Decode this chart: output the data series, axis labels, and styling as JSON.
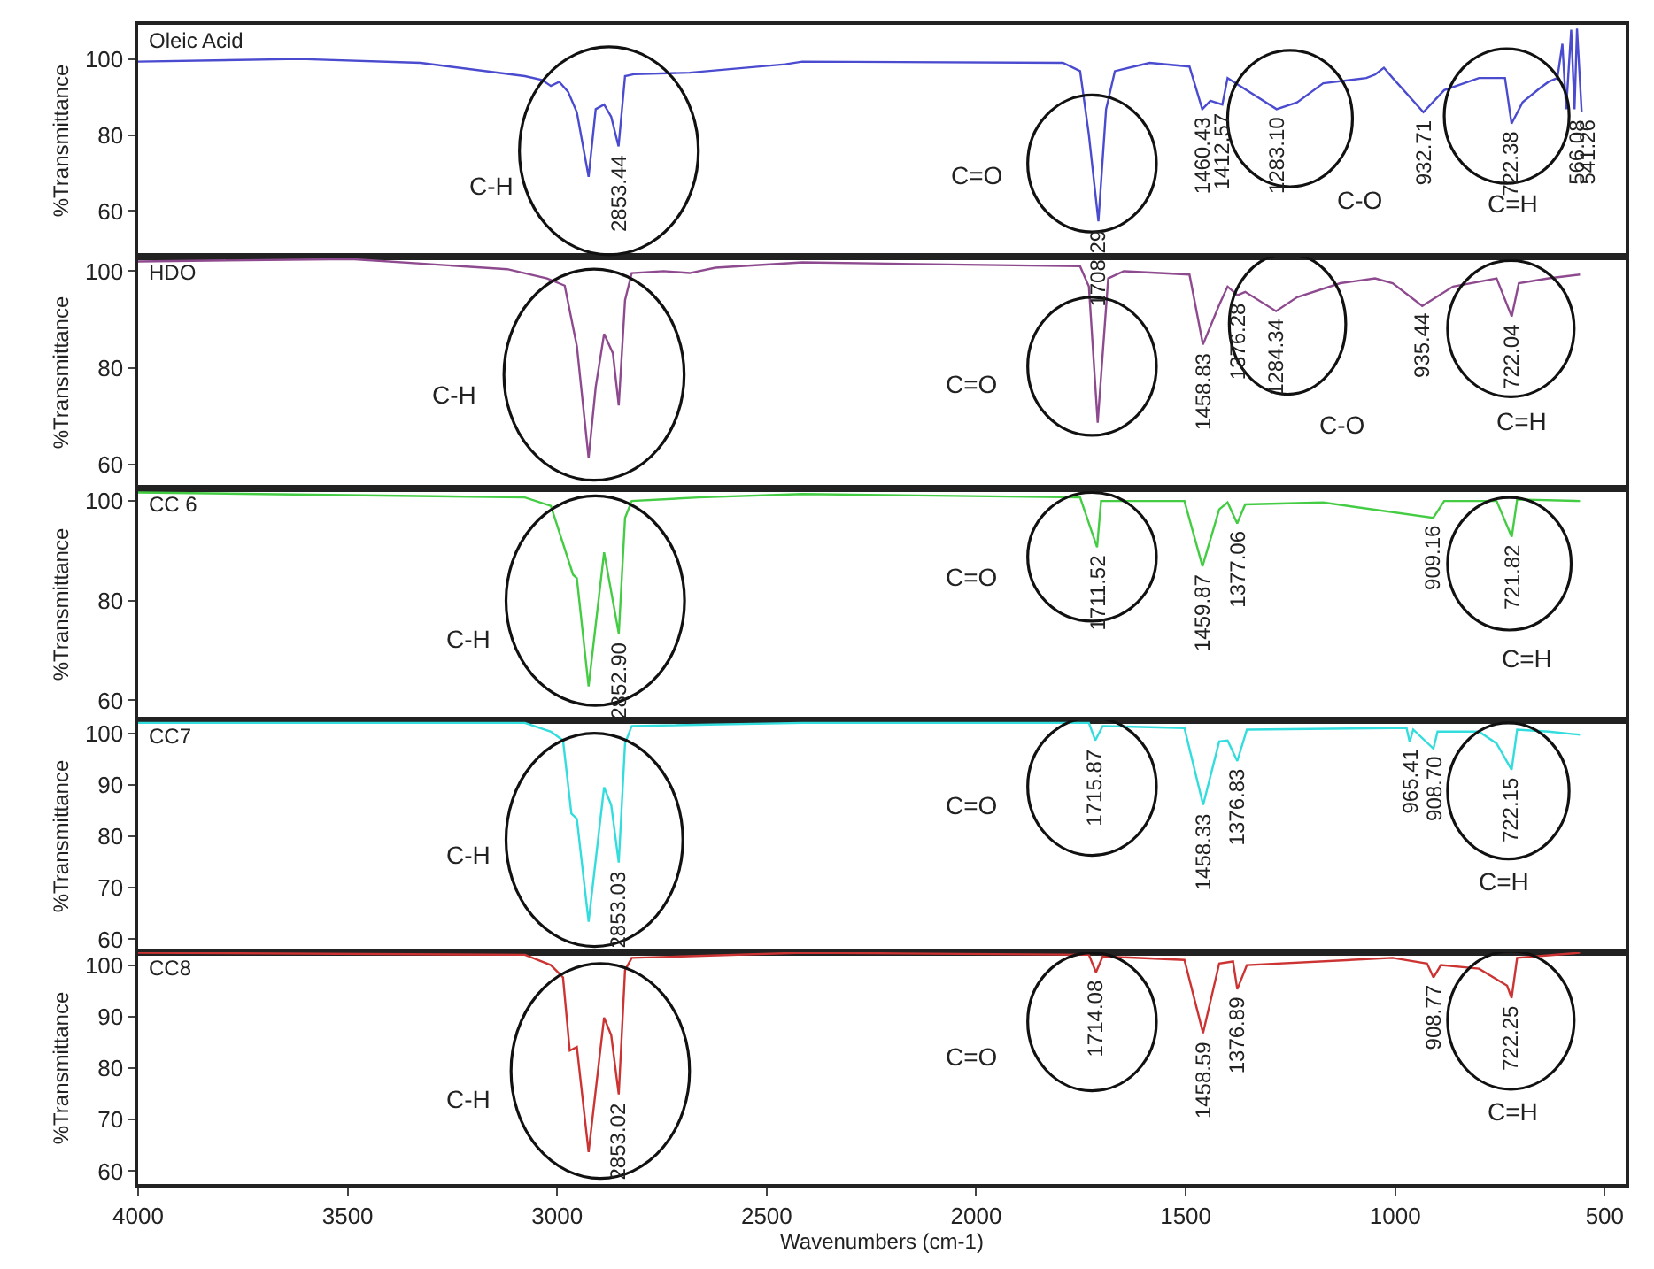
{
  "chart_data": [
    {
      "type": "line",
      "ylabel": "%Transmittance",
      "xlim": [
        4000,
        450
      ],
      "ylim": [
        48,
        109
      ],
      "yticks": [
        60,
        80,
        100
      ],
      "tick_labels": "y",
      "line_style": "solid",
      "series": [
        {
          "name": "Oleic Acid",
          "color": "#4b4bd0",
          "x": [
            4000,
            3615,
            3326,
            3077,
            3036,
            3015,
            2995,
            2974,
            2953,
            2925,
            2908,
            2888,
            2871,
            2853.44,
            2838,
            2817,
            2684,
            2456,
            2415,
            1793,
            1752,
            1731,
            1708.29,
            1690,
            1669,
            1586,
            1491,
            1460.43,
            1441,
            1412.57,
            1400,
            1380,
            1283.1,
            1234,
            1172,
            1069,
            1048,
            1027,
            1006,
            932.71,
            883,
            800,
            738,
            722.38,
            696,
            655,
            634,
            613,
            601,
            592,
            580,
            572,
            566.08,
            555
          ],
          "values": [
            99.3,
            100,
            99,
            95.5,
            94.5,
            92.9,
            94,
            91.4,
            86,
            69,
            86.8,
            88,
            84.8,
            77,
            95.5,
            96,
            96.4,
            98.6,
            99.3,
            99,
            96.8,
            80,
            57.3,
            86.8,
            96.8,
            99,
            98,
            86.8,
            89,
            88,
            95,
            93.6,
            86.8,
            88.6,
            93.6,
            95,
            95.9,
            97.7,
            95,
            86,
            91.8,
            95,
            95,
            83,
            88.6,
            92.3,
            94,
            95,
            104,
            86.8,
            107.7,
            86.8,
            108,
            86
          ]
        }
      ],
      "annotations": [
        {
          "text": "2853.44",
          "x": 2853.44,
          "y": 77
        },
        {
          "text": "1708.29",
          "x": 1708.29,
          "y": 57.3
        },
        {
          "text": "1460.43",
          "x": 1460.43,
          "y": 86.8
        },
        {
          "text": "1412.57",
          "x": 1412.57,
          "y": 88
        },
        {
          "text": "1283.10",
          "x": 1283.1,
          "y": 86.8
        },
        {
          "text": "932.71",
          "x": 932.71,
          "y": 86
        },
        {
          "text": "722.38",
          "x": 722.38,
          "y": 83
        },
        {
          "text": "566.08",
          "x": 566.08,
          "y": 86
        },
        {
          "text": "541.26",
          "x": 541.26,
          "y": 86
        },
        "C-H",
        "C=O",
        "C-O",
        "C=H"
      ]
    },
    {
      "type": "line",
      "ylabel": "%Transmittance",
      "xlim": [
        4000,
        450
      ],
      "ylim": [
        55,
        103
      ],
      "yticks": [
        60,
        80,
        100
      ],
      "tick_labels": "y",
      "line_style": "solid",
      "series": [
        {
          "name": "HDO",
          "color": "#8e4a8e",
          "x": [
            4000,
            3492,
            3119,
            3024,
            2982,
            2953,
            2925,
            2908,
            2888,
            2867,
            2853,
            2838,
            2822,
            2746,
            2684,
            2622,
            2415,
            1752,
            1731,
            1710,
            1685,
            1648,
            1491,
            1458.83,
            1420,
            1400,
            1376.28,
            1358,
            1284.34,
            1234,
            1131,
            1048,
            1006,
            935.44,
            862,
            758,
            722.04,
            705,
            634,
            559
          ],
          "values": [
            102,
            102.5,
            100.4,
            98.5,
            97,
            84.5,
            61.3,
            76,
            87,
            83,
            72.2,
            94,
            99.6,
            100,
            99.6,
            100.7,
            101.8,
            101,
            96.8,
            68.6,
            98.5,
            100,
            99.3,
            84.8,
            93,
            96.8,
            95,
            95.7,
            91.7,
            94.6,
            97.5,
            98.5,
            97.5,
            92.8,
            96.8,
            98.5,
            90.6,
            97.5,
            98.5,
            99.3
          ]
        }
      ],
      "annotations": [
        {
          "text": "1458.83",
          "x": 1458.83,
          "y": 84.8
        },
        {
          "text": "1376.28",
          "x": 1376.28,
          "y": 95
        },
        {
          "text": "1284.34",
          "x": 1284.34,
          "y": 91.7
        },
        {
          "text": "935.44",
          "x": 935.44,
          "y": 92.8
        },
        {
          "text": "722.04",
          "x": 722.04,
          "y": 90.6
        },
        "C-H",
        "C=O",
        "C-O",
        "C=H"
      ]
    },
    {
      "type": "line",
      "ylabel": "%Transmittance",
      "xlim": [
        4000,
        450
      ],
      "ylim": [
        56,
        102.5
      ],
      "yticks": [
        60,
        80,
        100
      ],
      "tick_labels": "y",
      "line_style": "solid",
      "series": [
        {
          "name": "CC 6",
          "color": "#44cc44",
          "x": [
            4000,
            3077,
            3015,
            2962,
            2953,
            2925,
            2888,
            2852.9,
            2838,
            2822,
            2663,
            2415,
            1752,
            1711.52,
            1702,
            1503,
            1459.87,
            1420,
            1400,
            1377.06,
            1358,
            1172,
            909.16,
            883,
            758,
            721.82,
            709,
            559
          ],
          "values": [
            101.7,
            100.7,
            99,
            85.2,
            84.5,
            62.8,
            89.7,
            73.4,
            96.6,
            100,
            100.7,
            101.4,
            100.7,
            90.7,
            100,
            100,
            86.9,
            98.3,
            99.7,
            95.5,
            99.3,
            99.7,
            96.6,
            100,
            100,
            92.8,
            100.3,
            100
          ]
        }
      ],
      "annotations": [
        {
          "text": "2852.90",
          "x": 2852.9,
          "y": 73.4
        },
        {
          "text": "1711.52",
          "x": 1711.52,
          "y": 90.7
        },
        {
          "text": "1459.87",
          "x": 1459.87,
          "y": 86.9
        },
        {
          "text": "1377.06",
          "x": 1377.06,
          "y": 95.5
        },
        {
          "text": "909.16",
          "x": 909.16,
          "y": 96.6
        },
        {
          "text": "721.82",
          "x": 721.82,
          "y": 92.8
        },
        "C-H",
        "C=O",
        "C=H"
      ]
    },
    {
      "type": "line",
      "ylabel": "%Transmittance",
      "xlim": [
        4000,
        450
      ],
      "ylim": [
        57.5,
        102.5
      ],
      "yticks": [
        60,
        70,
        80,
        90,
        100
      ],
      "tick_labels": "y",
      "line_style": "solid",
      "series": [
        {
          "name": "CC7",
          "color": "#33dddd",
          "x": [
            4000,
            3077,
            3015,
            2986,
            2966,
            2953,
            2925,
            2888,
            2871,
            2853.03,
            2838,
            2822,
            2415,
            1731,
            1715.87,
            1698,
            1503,
            1458.33,
            1420,
            1400,
            1376.83,
            1354,
            1006,
            973,
            965.41,
            957,
            908.7,
            899,
            800,
            758,
            722.15,
            709,
            634,
            559
          ],
          "values": [
            102,
            102,
            100.3,
            98.6,
            84.4,
            83.4,
            63.4,
            89.5,
            86.1,
            74.9,
            98,
            101.4,
            102,
            102,
            98.6,
            101.4,
            101,
            86.1,
            98.4,
            98.6,
            94.6,
            100.7,
            101,
            101,
            98.3,
            100.7,
            97,
            100.3,
            100.3,
            98,
            92.9,
            100.7,
            100.3,
            99.7
          ]
        }
      ],
      "annotations": [
        {
          "text": "2853.03",
          "x": 2853.03,
          "y": 74.9
        },
        {
          "text": "1715.87",
          "x": 1715.87,
          "y": 98.6
        },
        {
          "text": "1458.33",
          "x": 1458.33,
          "y": 86.1
        },
        {
          "text": "1376.83",
          "x": 1376.83,
          "y": 94.6
        },
        {
          "text": "965.41",
          "x": 965.41,
          "y": 98.3
        },
        {
          "text": "908.70",
          "x": 908.7,
          "y": 97
        },
        {
          "text": "722.15",
          "x": 722.15,
          "y": 92.9
        },
        "C-H",
        "C=O",
        "C=H"
      ]
    },
    {
      "type": "line",
      "ylabel": "%Transmittance",
      "xlabel": "Wavenumbers (cm-1)",
      "xlim": [
        4000,
        450
      ],
      "xticks": [
        4000,
        3500,
        3000,
        2500,
        2000,
        1500,
        1000,
        500
      ],
      "ylim": [
        57.5,
        102.5
      ],
      "yticks": [
        60,
        70,
        80,
        90,
        100
      ],
      "line_style": "solid",
      "series": [
        {
          "name": "CC8",
          "color": "#cc3333",
          "x": [
            4000,
            3077,
            3015,
            2986,
            2970,
            2953,
            2925,
            2888,
            2871,
            2853.02,
            2838,
            2822,
            2415,
            1731,
            1714.08,
            1698,
            1503,
            1458.59,
            1420,
            1387,
            1376.89,
            1354,
            1006,
            924,
            908.77,
            891,
            800,
            733,
            722.25,
            709,
            559
          ],
          "values": [
            102.4,
            102,
            100,
            97.6,
            83.4,
            84.1,
            63.7,
            89.8,
            86.4,
            74.9,
            99,
            101.4,
            102.4,
            102,
            98.6,
            101.7,
            101,
            86.8,
            100.3,
            100.7,
            95.3,
            100,
            101.4,
            100.3,
            97.6,
            100,
            99.3,
            96,
            93.6,
            101.4,
            102.4
          ]
        }
      ],
      "annotations": [
        {
          "text": "2853.02",
          "x": 2853.02,
          "y": 74.9
        },
        {
          "text": "1714.08",
          "x": 1714.08,
          "y": 98.6
        },
        {
          "text": "1458.59",
          "x": 1458.59,
          "y": 86.8
        },
        {
          "text": "1376.89",
          "x": 1376.89,
          "y": 95.3
        },
        {
          "text": "908.77",
          "x": 908.77,
          "y": 97.6
        },
        {
          "text": "722.25",
          "x": 722.25,
          "y": 93.6
        },
        "C-H",
        "C=O",
        "C=H"
      ]
    }
  ]
}
